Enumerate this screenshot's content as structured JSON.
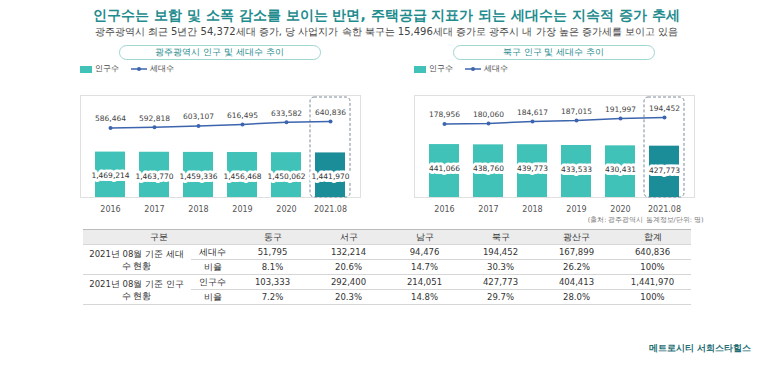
{
  "title": "인구수는 보합 및 소폭 감소를 보이는 반면, 주택공급 지표가 되는 세대수는 지속적 증가 추세",
  "subtitle": "광주광역시 최근 5년간 54,372세대 증가, 당 사업지가 속한 북구는 15,496세대 증가로 광주시 내 가장 높은 증가세를 보이고 있음",
  "chart_data": [
    {
      "type": "bar",
      "title": "광주광역시 인구 및 세대수 추이",
      "categories": [
        "2016",
        "2017",
        "2018",
        "2019",
        "2020",
        "2021.08"
      ],
      "series": [
        {
          "name": "인구수",
          "type": "bar",
          "color": "#40c2b8",
          "colors": [
            "#40c2b8",
            "#40c2b8",
            "#40c2b8",
            "#40c2b8",
            "#40c2b8",
            "#1b8d99"
          ],
          "values": [
            1469214,
            1463770,
            1459336,
            1456468,
            1450062,
            1441970
          ],
          "value_labels": [
            "1,469,214",
            "1,463,770",
            "1,459,336",
            "1,456,468",
            "1,450,062",
            "1,441,970"
          ]
        },
        {
          "name": "세대수",
          "type": "line",
          "axis": "y2",
          "color": "#3d65ae",
          "marker": "circle",
          "values": [
            586464,
            592818,
            603107,
            616495,
            633582,
            640836
          ],
          "value_labels": [
            "586,464",
            "592,818",
            "603,107",
            "616,495",
            "633,582",
            "640,836"
          ]
        }
      ],
      "ylim": [
        0,
        3300000
      ],
      "yticks": [],
      "y2lim": [
        0,
        860000
      ],
      "y2ticks": [],
      "tick_labels": "x",
      "data_labels": true,
      "grid": false,
      "legend": "top-left"
    },
    {
      "type": "bar",
      "title": "북구 인구 및 세대수 추이",
      "categories": [
        "2016",
        "2017",
        "2018",
        "2019",
        "2020",
        "2021.08"
      ],
      "series": [
        {
          "name": "인구수",
          "type": "bar",
          "color": "#40c2b8",
          "colors": [
            "#40c2b8",
            "#40c2b8",
            "#40c2b8",
            "#40c2b8",
            "#40c2b8",
            "#1b8d99"
          ],
          "values": [
            441066,
            438760,
            439773,
            433533,
            430431,
            427773
          ],
          "value_labels": [
            "441,066",
            "438,760",
            "439,773",
            "433,533",
            "430,431",
            "427,773"
          ]
        },
        {
          "name": "세대수",
          "type": "line",
          "axis": "y2",
          "color": "#3d65ae",
          "marker": "circle",
          "values": [
            178956,
            180060,
            184617,
            187015,
            191997,
            194452
          ],
          "value_labels": [
            "178,956",
            "180,060",
            "184,617",
            "187,015",
            "191,997",
            "194,452"
          ]
        }
      ],
      "ylim": [
        0,
        850000
      ],
      "yticks": [],
      "y2lim": [
        0,
        248000
      ],
      "y2ticks": [],
      "tick_labels": "x",
      "data_labels": true,
      "grid": false,
      "legend": "top-left"
    }
  ],
  "source": "(출처: 광주광역시 통계정보/단위: 명)",
  "table": {
    "header": [
      "구분",
      "동구",
      "서구",
      "남구",
      "북구",
      "광산구",
      "합계"
    ],
    "groups": [
      {
        "label": "2021년 08월 기준 세대수 현황",
        "rows": [
          [
            "세대수",
            "51,795",
            "132,214",
            "94,476",
            "194,452",
            "167,899",
            "640,836"
          ],
          [
            "비율",
            "8.1%",
            "20.6%",
            "14.7%",
            "30.3%",
            "26.2%",
            "100%"
          ]
        ]
      },
      {
        "label": "2021년 08월 기준 인구수 현황",
        "rows": [
          [
            "인구수",
            "103,333",
            "292,400",
            "214,051",
            "427,773",
            "404,413",
            "1,441,970"
          ],
          [
            "비율",
            "7.2%",
            "20.3%",
            "14.8%",
            "29.7%",
            "28.0%",
            "100%"
          ]
        ]
      }
    ]
  },
  "brand": "메트로시티 서희스타힐스"
}
